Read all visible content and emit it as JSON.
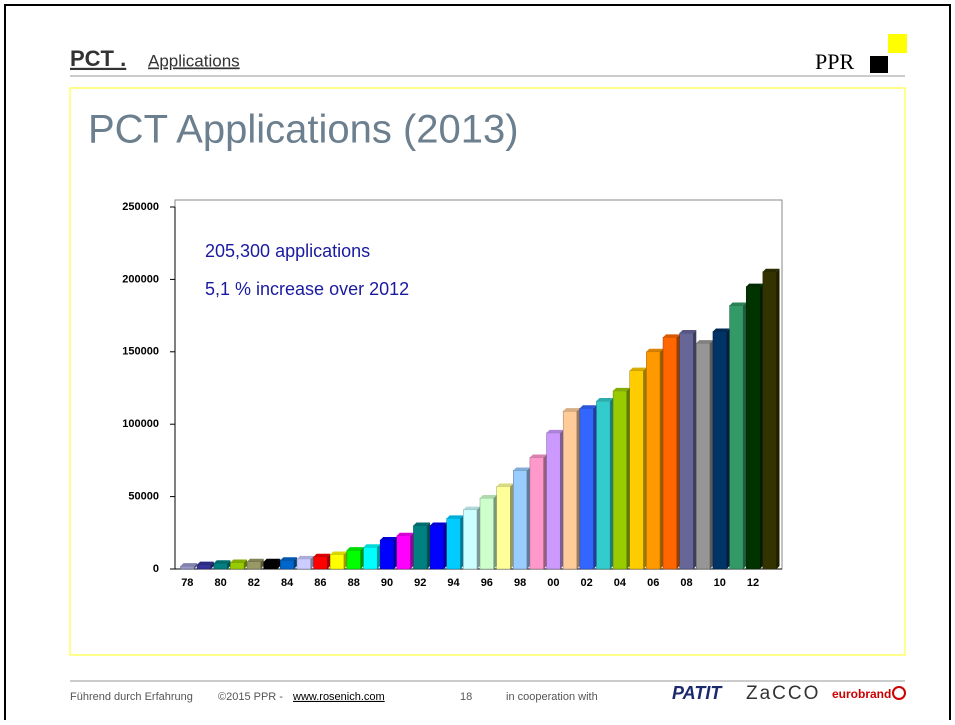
{
  "slide": {
    "header": {
      "title": "PCT .",
      "subtitle": "Applications",
      "logo": "PPR"
    },
    "heading": "PCT Applications (2013)",
    "footer": {
      "tagline": "Führend durch Erfahrung",
      "copyright": "©2015 PPR - ",
      "link": "www.rosenich.com",
      "page": "18",
      "cooperation": "in cooperation with",
      "partners": [
        "PATIT",
        "ZaCCO",
        "eurobrand"
      ]
    }
  },
  "chart_data": {
    "type": "bar",
    "annotations": [
      "205,300 applications",
      "5,1 % increase over 2012"
    ],
    "categories": [
      "78",
      null,
      "80",
      null,
      "82",
      null,
      "84",
      null,
      "86",
      null,
      "88",
      null,
      "90",
      null,
      "92",
      null,
      "94",
      null,
      "96",
      null,
      "98",
      null,
      "00",
      null,
      "02",
      null,
      "04",
      null,
      "06",
      null,
      "08",
      null,
      "10",
      null,
      "12",
      null
    ],
    "values": [
      2000,
      3000,
      4000,
      4500,
      5000,
      5000,
      6000,
      7000,
      8500,
      10000,
      13000,
      15000,
      20000,
      23000,
      30000,
      30000,
      35000,
      41000,
      49000,
      57000,
      68000,
      77000,
      94000,
      109000,
      111000,
      116000,
      123000,
      137000,
      150000,
      160000,
      163000,
      156000,
      164000,
      182000,
      195000,
      205300
    ],
    "colors": [
      "#9999cc",
      "#333399",
      "#008080",
      "#99cc00",
      "#999966",
      "#000000",
      "#0066cc",
      "#ccccff",
      "#ff0000",
      "#ffff00",
      "#00ff00",
      "#00ffff",
      "#0000ff",
      "#ff00ff",
      "#008080",
      "#0000ff",
      "#00ccff",
      "#ccffff",
      "#ccffcc",
      "#ffff99",
      "#99ccff",
      "#ff99cc",
      "#cc99ff",
      "#ffcc99",
      "#3366ff",
      "#33cccc",
      "#99cc00",
      "#ffcc00",
      "#ff9900",
      "#ff6600",
      "#666699",
      "#969696",
      "#003366",
      "#339966",
      "#003300",
      "#333300"
    ],
    "ylim": [
      0,
      250000
    ],
    "yticks": [
      0,
      50000,
      100000,
      150000,
      200000,
      250000
    ],
    "grid": false
  }
}
